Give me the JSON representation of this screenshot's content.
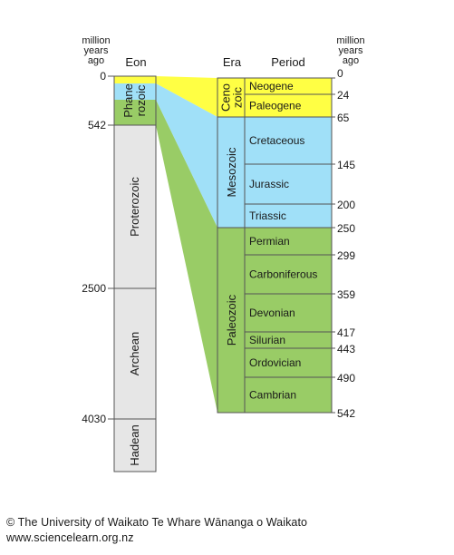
{
  "headers": {
    "mya_left": [
      "million",
      "years",
      "ago"
    ],
    "mya_right": [
      "million",
      "years",
      "ago"
    ],
    "eon": "Eon",
    "era": "Era",
    "period": "Period"
  },
  "colors": {
    "cenozoic": "#ffff44",
    "mesozoic": "#a0e0f8",
    "paleozoic": "#99cc66",
    "precambrian": "#e6e6e6",
    "outline": "#555555"
  },
  "eons": [
    {
      "name": "Phanerozoic",
      "lines": [
        "Phane",
        "rozoic"
      ],
      "start_ma": 0,
      "end_ma": 542
    },
    {
      "name": "Proterozoic",
      "lines": [
        "Proterozoic"
      ],
      "start_ma": 542,
      "end_ma": 2500
    },
    {
      "name": "Archean",
      "lines": [
        "Archean"
      ],
      "start_ma": 2500,
      "end_ma": 4030
    },
    {
      "name": "Hadean",
      "lines": [
        "Hadean"
      ],
      "start_ma": 4030,
      "end_ma": 4600
    }
  ],
  "eon_ticks": [
    "0",
    "542",
    "2500",
    "4030"
  ],
  "eras": [
    {
      "name": "Cenozoic",
      "lines": [
        "Ceno",
        "zoic"
      ],
      "start_ma": 0,
      "end_ma": 65
    },
    {
      "name": "Mesozoic",
      "lines": [
        "Mesozoic"
      ],
      "start_ma": 65,
      "end_ma": 250
    },
    {
      "name": "Paleozoic",
      "lines": [
        "Paleozoic"
      ],
      "start_ma": 250,
      "end_ma": 542
    }
  ],
  "periods": [
    {
      "name": "Neogene",
      "era": "Cenozoic",
      "start_ma": 0,
      "end_ma": 24
    },
    {
      "name": "Paleogene",
      "era": "Cenozoic",
      "start_ma": 24,
      "end_ma": 65
    },
    {
      "name": "Cretaceous",
      "era": "Mesozoic",
      "start_ma": 65,
      "end_ma": 145
    },
    {
      "name": "Jurassic",
      "era": "Mesozoic",
      "start_ma": 145,
      "end_ma": 200
    },
    {
      "name": "Triassic",
      "era": "Mesozoic",
      "start_ma": 200,
      "end_ma": 250
    },
    {
      "name": "Permian",
      "era": "Paleozoic",
      "start_ma": 250,
      "end_ma": 299
    },
    {
      "name": "Carboniferous",
      "era": "Paleozoic",
      "start_ma": 299,
      "end_ma": 359
    },
    {
      "name": "Devonian",
      "era": "Paleozoic",
      "start_ma": 359,
      "end_ma": 417
    },
    {
      "name": "Silurian",
      "era": "Paleozoic",
      "start_ma": 417,
      "end_ma": 443
    },
    {
      "name": "Ordovician",
      "era": "Paleozoic",
      "start_ma": 443,
      "end_ma": 490
    },
    {
      "name": "Cambrian",
      "era": "Paleozoic",
      "start_ma": 490,
      "end_ma": 542
    }
  ],
  "period_ticks": [
    "0",
    "24",
    "65",
    "145",
    "200",
    "250",
    "299",
    "359",
    "417",
    "443",
    "490",
    "542"
  ],
  "credit": {
    "line1": "© The University of Waikato Te Whare Wānanga o Waikato",
    "line2": "www.sciencelearn.org.nz"
  }
}
